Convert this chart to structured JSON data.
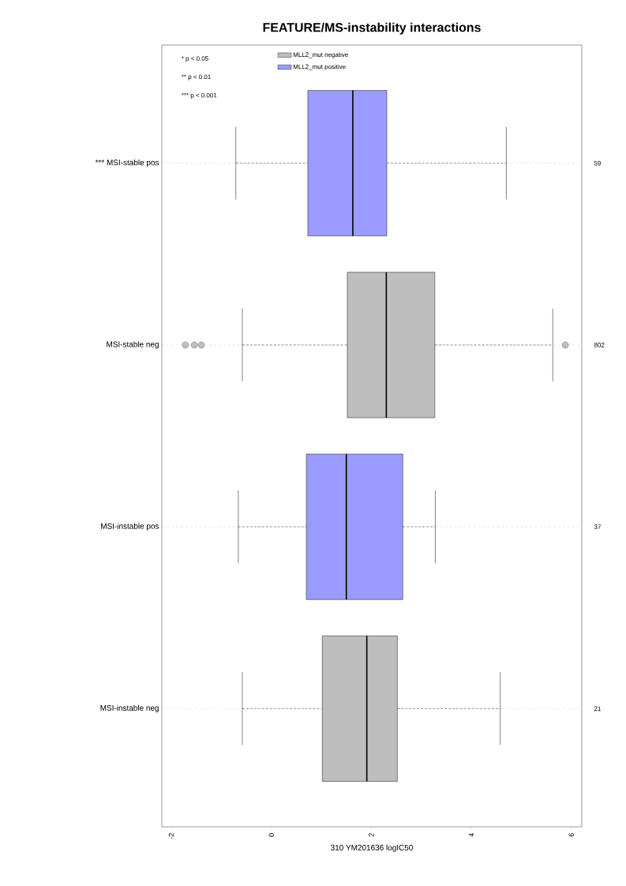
{
  "chart_data": {
    "type": "box",
    "orientation": "horizontal",
    "title": "FEATURE/MS-instability interactions",
    "xlabel": "310 YM201636 logIC50",
    "categories": [
      "*** MSI-stable pos",
      "MSI-stable neg",
      "MSI-instable pos",
      "MSI-instable neg"
    ],
    "series": [
      {
        "name": "MLL2_mut negative",
        "color": "#bebebe",
        "boxes": [
          null,
          {
            "low": -0.58,
            "q1": 1.52,
            "median": 2.3,
            "q3": 3.27,
            "high": 5.63,
            "outliers": [
              -1.72,
              -1.54,
              -1.4,
              5.88
            ]
          },
          null,
          {
            "low": -0.58,
            "q1": 1.02,
            "median": 1.91,
            "q3": 2.52,
            "high": 4.58
          }
        ]
      },
      {
        "name": "MLL2_mut positive",
        "color": "#9b9bff",
        "boxes": [
          {
            "low": -0.71,
            "q1": 0.73,
            "median": 1.63,
            "q3": 2.31,
            "high": 4.7
          },
          null,
          {
            "low": -0.66,
            "q1": 0.7,
            "median": 1.5,
            "q3": 2.63,
            "high": 3.28
          },
          null
        ]
      }
    ],
    "xlim": [
      -2.19,
      6.21
    ],
    "xticks": [
      -2,
      0,
      2,
      4,
      6
    ],
    "grid": "y",
    "legend": "top left",
    "annotations": [
      "* p < 0.05",
      "** p < 0.01",
      "*** p < 0.001",
      "59",
      "802",
      "37",
      "21"
    ]
  }
}
